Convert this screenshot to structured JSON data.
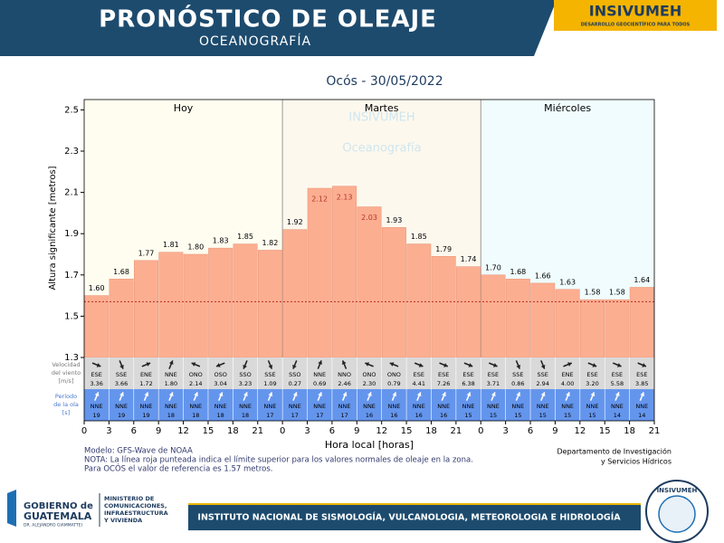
{
  "header": {
    "title": "PRONÓSTICO DE OLEAJE",
    "subtitle": "OCEANOGRAFÍA",
    "logo": "INSIVUMEH",
    "logo_tagline": "DESARROLLO GEOCIENTÍFICO PARA TODOS"
  },
  "chart_data": {
    "type": "bar",
    "title": "Ocós  -  30/05/2022",
    "xlabel": "Hora local [horas]",
    "ylabel": "Altura significante [metros]",
    "watermark": [
      "INSIVUMEH",
      "Oceanografía"
    ],
    "days": [
      {
        "label": "Hoy",
        "color": "#fffdf0"
      },
      {
        "label": "Martes",
        "color": "#fdf8ee"
      },
      {
        "label": "Miércoles",
        "color": "#f0fcfd"
      }
    ],
    "color": "#fcae91",
    "values": [
      1.6,
      1.68,
      1.77,
      1.81,
      1.8,
      1.83,
      1.85,
      1.82,
      1.92,
      2.12,
      2.13,
      2.03,
      1.93,
      1.85,
      1.79,
      1.74,
      1.7,
      1.68,
      1.66,
      1.63,
      1.58,
      1.58,
      1.64
    ],
    "value_labels": [
      "1.60",
      "1.68",
      "1.77",
      "1.81",
      "1.80",
      "1.83",
      "1.85",
      "1.82",
      "1.92",
      "2.12",
      "2.13",
      "2.03",
      "1.93",
      "1.85",
      "1.79",
      "1.74",
      "1.70",
      "1.68",
      "1.66",
      "1.63",
      "1.58",
      "1.58",
      "1.64"
    ],
    "reference_line": 1.57,
    "reference_color": "#c0392b",
    "ylim": [
      1.3,
      2.55
    ],
    "yticks": [
      1.3,
      1.5,
      1.7,
      1.9,
      2.1,
      2.3,
      2.5
    ],
    "xlim": [
      0,
      23
    ],
    "xticks": [
      {
        "value": 0,
        "label": "0"
      },
      {
        "value": 1,
        "label": "3"
      },
      {
        "value": 2,
        "label": "6"
      },
      {
        "value": 3,
        "label": "9"
      },
      {
        "value": 4,
        "label": "12"
      },
      {
        "value": 5,
        "label": "15"
      },
      {
        "value": 6,
        "label": "18"
      },
      {
        "value": 7,
        "label": "21"
      },
      {
        "value": 8,
        "label": "0"
      },
      {
        "value": 9,
        "label": "3"
      },
      {
        "value": 10,
        "label": "6"
      },
      {
        "value": 11,
        "label": "9"
      },
      {
        "value": 12,
        "label": "12"
      },
      {
        "value": 13,
        "label": "15"
      },
      {
        "value": 14,
        "label": "18"
      },
      {
        "value": 15,
        "label": "21"
      },
      {
        "value": 16,
        "label": "0"
      },
      {
        "value": 17,
        "label": "3"
      },
      {
        "value": 18,
        "label": "6"
      },
      {
        "value": 19,
        "label": "9"
      },
      {
        "value": 20,
        "label": "12"
      },
      {
        "value": 21,
        "label": "15"
      },
      {
        "value": 22,
        "label": "18"
      },
      {
        "value": 23,
        "label": "21"
      }
    ],
    "wind": {
      "label_lines": [
        "Velocidad",
        "del viento",
        "[m/s]"
      ],
      "color": "#d9d9d9",
      "directions": [
        "ESE",
        "SSE",
        "ENE",
        "NNE",
        "ONO",
        "OSO",
        "SSO",
        "SSE",
        "SSO",
        "NNE",
        "NNO",
        "ONO",
        "ONO",
        "ESE",
        "ESE",
        "ESE",
        "ESE",
        "SSE",
        "SSE",
        "ENE",
        "ESE",
        "ESE",
        "ESE"
      ],
      "speeds": [
        "3.36",
        "3.66",
        "1.72",
        "1.80",
        "2.14",
        "3.04",
        "3.23",
        "1.09",
        "0.27",
        "0.69",
        "2.46",
        "2.30",
        "0.79",
        "4.41",
        "7.26",
        "6.38",
        "3.71",
        "0.86",
        "2.94",
        "4.00",
        "3.20",
        "5.58",
        "3.85"
      ]
    },
    "wave": {
      "label_lines": [
        "Período",
        "de la ola",
        "[s]"
      ],
      "color": "#6495ed",
      "directions": [
        "NNE",
        "NNE",
        "NNE",
        "NNE",
        "NNE",
        "NNE",
        "NNE",
        "NNE",
        "NNE",
        "NNE",
        "NNE",
        "NNE",
        "NNE",
        "NNE",
        "NNE",
        "NNE",
        "NNE",
        "NNE",
        "NNE",
        "NNE",
        "NNE",
        "NNE",
        "NNE"
      ],
      "periods": [
        19,
        19,
        19,
        18,
        18,
        18,
        18,
        17,
        17,
        17,
        17,
        16,
        16,
        16,
        16,
        15,
        15,
        15,
        15,
        15,
        15,
        14,
        14
      ]
    }
  },
  "notes": [
    "Modelo: GFS-Wave de NOAA",
    "NOTA: La línea roja punteada indica el límite superior para los valores normales de oleaje en la zona.",
    "Para OCÓS el valor de referencia es 1.57 metros."
  ],
  "department": [
    "Departamento de Investigación",
    "y Servicios Hídricos"
  ],
  "footer": {
    "gov_line1": "GOBIERNO de",
    "gov_line2": "GUATEMALA",
    "gov_line3": "DR. ALEJANDRO GIAMMATTEI",
    "ministry": [
      "MINISTERIO DE",
      "COMUNICACIONES,",
      "INFRAESTRUCTURA",
      "Y VIVIENDA"
    ],
    "institute": "INSTITUTO NACIONAL DE SISMOLOGÍA, VULCANOLOGIA, METEOROLOGIA E HIDROLOGÍA",
    "seal": "INSIVUMEH"
  }
}
